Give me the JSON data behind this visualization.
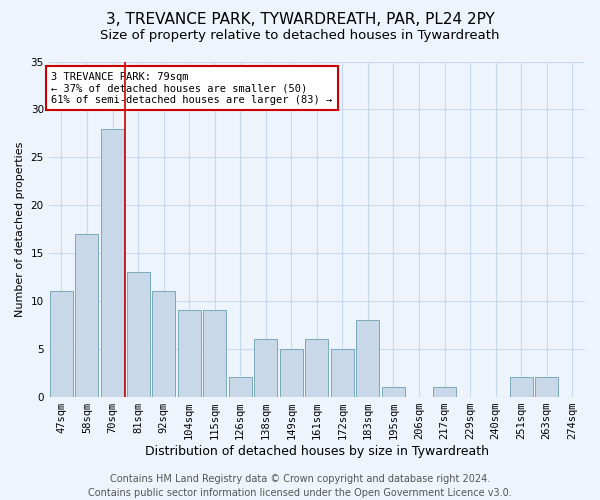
{
  "title": "3, TREVANCE PARK, TYWARDREATH, PAR, PL24 2PY",
  "subtitle": "Size of property relative to detached houses in Tywardreath",
  "xlabel": "Distribution of detached houses by size in Tywardreath",
  "ylabel": "Number of detached properties",
  "categories": [
    "47sqm",
    "58sqm",
    "70sqm",
    "81sqm",
    "92sqm",
    "104sqm",
    "115sqm",
    "126sqm",
    "138sqm",
    "149sqm",
    "161sqm",
    "172sqm",
    "183sqm",
    "195sqm",
    "206sqm",
    "217sqm",
    "229sqm",
    "240sqm",
    "251sqm",
    "263sqm",
    "274sqm"
  ],
  "values": [
    11,
    17,
    28,
    13,
    11,
    9,
    9,
    2,
    6,
    5,
    6,
    5,
    8,
    1,
    0,
    1,
    0,
    0,
    2,
    2,
    0
  ],
  "bar_color": "#c8d8e8",
  "bar_edgecolor": "#7aaabb",
  "grid_color": "#c8d8ee",
  "background_color": "#eef4fb",
  "vline_color": "#cc0000",
  "annotation_text": "3 TREVANCE PARK: 79sqm\n← 37% of detached houses are smaller (50)\n61% of semi-detached houses are larger (83) →",
  "annotation_box_color": "white",
  "annotation_box_edgecolor": "#cc0000",
  "ylim": [
    0,
    35
  ],
  "yticks": [
    0,
    5,
    10,
    15,
    20,
    25,
    30,
    35
  ],
  "footer": "Contains HM Land Registry data © Crown copyright and database right 2024.\nContains public sector information licensed under the Open Government Licence v3.0.",
  "title_fontsize": 11,
  "subtitle_fontsize": 9.5,
  "xlabel_fontsize": 9,
  "ylabel_fontsize": 8,
  "tick_fontsize": 7.5,
  "footer_fontsize": 7
}
